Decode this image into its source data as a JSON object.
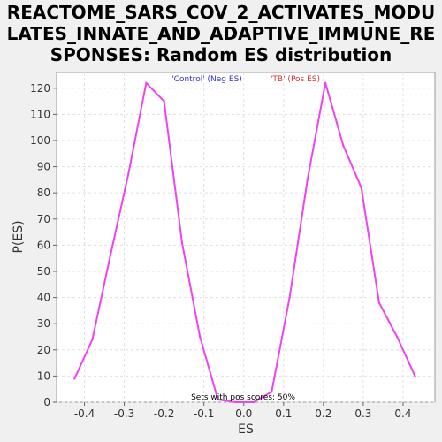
{
  "chart_data": {
    "type": "line",
    "title": "REACTOME_SARS_COV_2_ACTIVATES_MODULATES_INNATE_AND_ADAPTIVE_IMMUNE_RESPONSES: Random ES distribution",
    "title_lines": [
      "REACTOME_SARS_COV_2_ACTIVATES_MODU",
      "LATES_INNATE_AND_ADAPTIVE_IMMUNE_RE",
      "SPONSES: Random ES distribution"
    ],
    "xlabel": "ES",
    "ylabel": "P(ES)",
    "xlim": [
      -0.47,
      0.48
    ],
    "ylim": [
      0,
      126
    ],
    "xticks": [
      -0.4,
      -0.3,
      -0.2,
      -0.1,
      0.0,
      0.1,
      0.2,
      0.3,
      0.4
    ],
    "xtick_labels": [
      "-0.4",
      "-0.3",
      "-0.2",
      "-0.1",
      "0.0",
      "0.1",
      "0.2",
      "0.3",
      "0.4"
    ],
    "yticks": [
      0,
      10,
      20,
      30,
      40,
      50,
      60,
      70,
      80,
      90,
      100,
      110,
      120
    ],
    "grid": true,
    "legend_placement": "top-center",
    "legend": [
      {
        "label": "'Control' (Neg ES)",
        "color": "#3333cc"
      },
      {
        "label": "'TB' (Pos ES)",
        "color": "#cc3333"
      }
    ],
    "annotation": "Sets with pos scores: 50%",
    "line_color": "#ee44ee",
    "series": [
      {
        "x": [
          -0.425,
          -0.38,
          -0.335,
          -0.29,
          -0.245,
          -0.2,
          -0.155,
          -0.11,
          -0.065,
          -0.02,
          0.025,
          0.07,
          0.115,
          0.16,
          0.205,
          0.25,
          0.295,
          0.34,
          0.385,
          0.43
        ],
        "y": [
          9,
          24,
          56,
          87,
          122,
          115,
          61,
          25,
          1,
          0,
          0,
          4,
          40,
          85,
          122,
          98,
          82,
          38,
          25,
          10
        ]
      }
    ]
  }
}
